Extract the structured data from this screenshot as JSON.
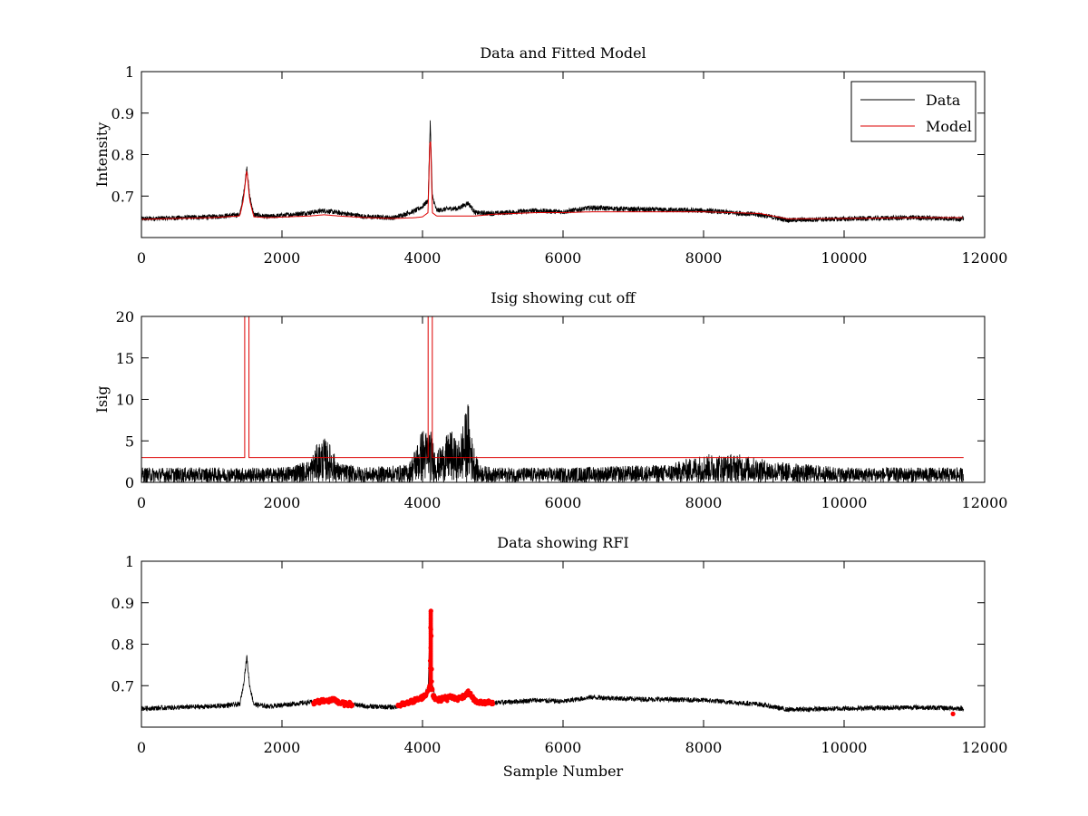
{
  "colors": {
    "data": "#000000",
    "model": "#dd0000",
    "rfi": "#ff0000",
    "axes": "#000000"
  },
  "chart_data": [
    {
      "type": "line",
      "title": "Data and Fitted Model",
      "xlabel": "",
      "ylabel": "Intensity",
      "xlim": [
        0,
        12000
      ],
      "ylim": [
        0.6,
        1.0
      ],
      "xticks": [
        0,
        2000,
        4000,
        6000,
        8000,
        10000,
        12000
      ],
      "xtick_labels": [
        "0",
        "2000",
        "4000",
        "6000",
        "8000",
        "10000",
        "12000"
      ],
      "yticks": [
        0.7,
        0.8,
        0.9,
        1.0
      ],
      "ytick_labels": [
        "0.7",
        "0.8",
        "0.9",
        "1"
      ],
      "legend": {
        "position": "top-right",
        "entries": [
          "Data",
          "Model"
        ]
      },
      "series": [
        {
          "name": "Data",
          "x": [
            0,
            1000,
            1400,
            1450,
            1500,
            1540,
            1600,
            1800,
            2400,
            2600,
            2800,
            3200,
            3600,
            3900,
            4000,
            4080,
            4110,
            4140,
            4200,
            4400,
            4500,
            4650,
            4750,
            5000,
            5600,
            6000,
            6400,
            7000,
            8000,
            8800,
            9200,
            10000,
            11000,
            11700
          ],
          "values": [
            0.645,
            0.65,
            0.655,
            0.7,
            0.77,
            0.7,
            0.655,
            0.65,
            0.66,
            0.665,
            0.66,
            0.65,
            0.648,
            0.665,
            0.675,
            0.69,
            0.88,
            0.7,
            0.665,
            0.67,
            0.67,
            0.683,
            0.66,
            0.658,
            0.665,
            0.662,
            0.672,
            0.668,
            0.665,
            0.655,
            0.642,
            0.645,
            0.648,
            0.645
          ]
        },
        {
          "name": "Model",
          "x": [
            0,
            1000,
            1400,
            1450,
            1500,
            1540,
            1600,
            1800,
            2400,
            2600,
            2800,
            3200,
            3600,
            3900,
            4000,
            4080,
            4110,
            4140,
            4200,
            4400,
            4500,
            4650,
            4750,
            5000,
            5600,
            6000,
            6400,
            7000,
            8000,
            8800,
            9200,
            10000,
            11000,
            11700
          ],
          "values": [
            0.644,
            0.648,
            0.652,
            0.69,
            0.765,
            0.69,
            0.65,
            0.648,
            0.652,
            0.655,
            0.652,
            0.648,
            0.646,
            0.648,
            0.65,
            0.66,
            0.875,
            0.66,
            0.652,
            0.652,
            0.652,
            0.652,
            0.652,
            0.656,
            0.66,
            0.66,
            0.662,
            0.662,
            0.662,
            0.658,
            0.645,
            0.646,
            0.648,
            0.648
          ]
        }
      ]
    },
    {
      "type": "line",
      "title": "Isig showing cut off",
      "xlabel": "",
      "ylabel": "Isig",
      "xlim": [
        0,
        12000
      ],
      "ylim": [
        0,
        20
      ],
      "xticks": [
        0,
        2000,
        4000,
        6000,
        8000,
        10000,
        12000
      ],
      "xtick_labels": [
        "0",
        "2000",
        "4000",
        "6000",
        "8000",
        "10000",
        "12000"
      ],
      "yticks": [
        0,
        5,
        10,
        15,
        20
      ],
      "ytick_labels": [
        "0",
        "5",
        "10",
        "15",
        "20"
      ],
      "series": [
        {
          "name": "Isig",
          "x": [
            0,
            1000,
            2000,
            2400,
            2500,
            2600,
            2700,
            2800,
            3200,
            3800,
            3950,
            4000,
            4050,
            4100,
            4200,
            4300,
            4400,
            4500,
            4600,
            4650,
            4700,
            4800,
            5000,
            6000,
            7500,
            8000,
            8500,
            9000,
            10000,
            11000,
            11700
          ],
          "values": [
            1.0,
            1.0,
            1.0,
            1.5,
            2.6,
            3.0,
            2.5,
            1.3,
            1.0,
            1.2,
            3.0,
            3.7,
            3.5,
            3.8,
            2.0,
            2.8,
            3.6,
            2.6,
            4.5,
            5.5,
            3.2,
            1.2,
            1.0,
            1.0,
            1.2,
            1.9,
            1.9,
            1.4,
            1.0,
            1.0,
            1.0
          ]
        },
        {
          "name": "Cut off",
          "x": [
            0,
            1470,
            1470,
            1530,
            1530,
            4080,
            4080,
            4140,
            4140,
            11700
          ],
          "values": [
            3,
            3,
            20,
            20,
            3,
            3,
            20,
            20,
            3,
            3
          ]
        }
      ]
    },
    {
      "type": "line",
      "title": "Data showing RFI",
      "xlabel": "Sample Number",
      "ylabel": "",
      "xlim": [
        0,
        12000
      ],
      "ylim": [
        0.6,
        1.0
      ],
      "xticks": [
        0,
        2000,
        4000,
        6000,
        8000,
        10000,
        12000
      ],
      "xtick_labels": [
        "0",
        "2000",
        "4000",
        "6000",
        "8000",
        "10000",
        "12000"
      ],
      "yticks": [
        0.7,
        0.8,
        0.9,
        1.0
      ],
      "ytick_labels": [
        "0.7",
        "0.8",
        "0.9",
        "1"
      ],
      "series": [
        {
          "name": "Data",
          "x": [
            0,
            1000,
            1400,
            1450,
            1500,
            1540,
            1600,
            1800,
            2400,
            2600,
            2800,
            3200,
            3600,
            3900,
            4000,
            4080,
            4110,
            4140,
            4200,
            4400,
            4500,
            4650,
            4750,
            5000,
            5600,
            6000,
            6400,
            7000,
            8000,
            8800,
            9200,
            10000,
            11000,
            11700
          ],
          "values": [
            0.645,
            0.65,
            0.655,
            0.7,
            0.77,
            0.7,
            0.655,
            0.65,
            0.66,
            0.665,
            0.66,
            0.65,
            0.648,
            0.665,
            0.675,
            0.69,
            0.88,
            0.7,
            0.665,
            0.67,
            0.67,
            0.683,
            0.66,
            0.658,
            0.665,
            0.662,
            0.672,
            0.668,
            0.665,
            0.655,
            0.642,
            0.645,
            0.648,
            0.645
          ]
        },
        {
          "name": "RFI",
          "x": [
            2450,
            2500,
            2550,
            2600,
            2650,
            2700,
            2750,
            2800,
            2850,
            2900,
            2950,
            3000,
            3650,
            3700,
            3750,
            3800,
            3850,
            3900,
            3950,
            4000,
            4050,
            4100,
            4110,
            4115,
            4120,
            4125,
            4130,
            4140,
            4150,
            4200,
            4250,
            4300,
            4350,
            4400,
            4450,
            4500,
            4550,
            4600,
            4650,
            4700,
            4750,
            4800,
            4850,
            4900,
            4950,
            5000,
            11550
          ],
          "values": [
            0.658,
            0.66,
            0.663,
            0.665,
            0.662,
            0.666,
            0.664,
            0.66,
            0.658,
            0.655,
            0.656,
            0.653,
            0.652,
            0.654,
            0.655,
            0.658,
            0.662,
            0.665,
            0.668,
            0.672,
            0.678,
            0.7,
            0.76,
            0.84,
            0.88,
            0.82,
            0.74,
            0.69,
            0.675,
            0.668,
            0.665,
            0.672,
            0.668,
            0.675,
            0.67,
            0.668,
            0.672,
            0.676,
            0.683,
            0.675,
            0.662,
            0.66,
            0.658,
            0.657,
            0.66,
            0.656,
            0.632
          ]
        }
      ]
    }
  ]
}
